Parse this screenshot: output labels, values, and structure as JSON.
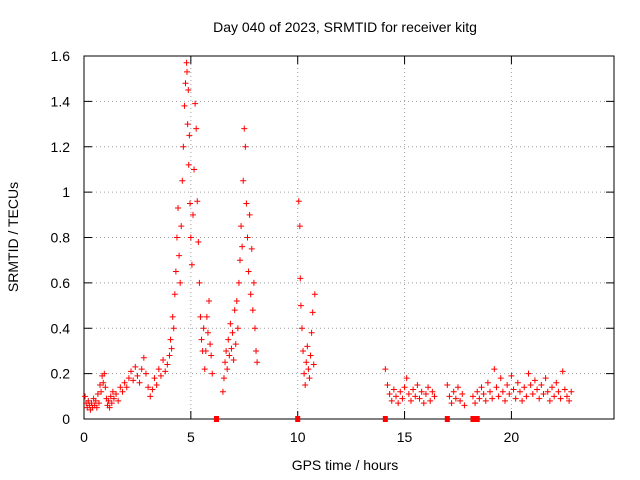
{
  "chart_data": {
    "type": "scatter",
    "title": "Day 040 of 2023, SRMTID for receiver kitg",
    "xlabel": "GPS time / hours",
    "ylabel": "SRMTID / TECUs",
    "xlim": [
      0,
      24.8
    ],
    "ylim": [
      0,
      1.6
    ],
    "xticks": [
      0,
      5,
      10,
      15,
      20
    ],
    "yticks": [
      0,
      0.2,
      0.4,
      0.6,
      0.8,
      1,
      1.2,
      1.4,
      1.6
    ],
    "xtick_labels": [
      "0",
      "5",
      "10",
      "15",
      "20"
    ],
    "ytick_labels": [
      "0",
      "0.2",
      "0.4",
      "0.6",
      "0.8",
      "1",
      "1.2",
      "1.4",
      "1.6"
    ],
    "grid": true,
    "marker": "+",
    "color": "#ff0000",
    "series": [
      {
        "name": "SRMTID",
        "points": [
          [
            0.05,
            0.1
          ],
          [
            0.1,
            0.07
          ],
          [
            0.15,
            0.05
          ],
          [
            0.2,
            0.08
          ],
          [
            0.25,
            0.06
          ],
          [
            0.3,
            0.04
          ],
          [
            0.35,
            0.07
          ],
          [
            0.4,
            0.05
          ],
          [
            0.45,
            0.09
          ],
          [
            0.5,
            0.06
          ],
          [
            0.55,
            0.08
          ],
          [
            0.6,
            0.05
          ],
          [
            0.65,
            0.11
          ],
          [
            0.7,
            0.07
          ],
          [
            0.75,
            0.15
          ],
          [
            0.8,
            0.12
          ],
          [
            0.85,
            0.19
          ],
          [
            0.9,
            0.16
          ],
          [
            0.95,
            0.2
          ],
          [
            1.0,
            0.14
          ],
          [
            1.05,
            0.09
          ],
          [
            1.1,
            0.06
          ],
          [
            1.15,
            0.08
          ],
          [
            1.2,
            0.05
          ],
          [
            1.25,
            0.1
          ],
          [
            1.3,
            0.07
          ],
          [
            1.35,
            0.12
          ],
          [
            1.4,
            0.09
          ],
          [
            1.5,
            0.11
          ],
          [
            1.6,
            0.08
          ],
          [
            1.7,
            0.14
          ],
          [
            1.8,
            0.12
          ],
          [
            1.9,
            0.16
          ],
          [
            2.0,
            0.14
          ],
          [
            2.1,
            0.18
          ],
          [
            2.2,
            0.21
          ],
          [
            2.3,
            0.17
          ],
          [
            2.4,
            0.23
          ],
          [
            2.5,
            0.19
          ],
          [
            2.6,
            0.16
          ],
          [
            2.7,
            0.22
          ],
          [
            2.8,
            0.27
          ],
          [
            2.9,
            0.2
          ],
          [
            3.0,
            0.14
          ],
          [
            3.1,
            0.1
          ],
          [
            3.2,
            0.13
          ],
          [
            3.3,
            0.18
          ],
          [
            3.4,
            0.15
          ],
          [
            3.5,
            0.22
          ],
          [
            3.6,
            0.19
          ],
          [
            3.7,
            0.26
          ],
          [
            3.8,
            0.21
          ],
          [
            3.9,
            0.24
          ],
          [
            4.0,
            0.28
          ],
          [
            4.05,
            0.35
          ],
          [
            4.1,
            0.31
          ],
          [
            4.15,
            0.45
          ],
          [
            4.2,
            0.4
          ],
          [
            4.25,
            0.55
          ],
          [
            4.3,
            0.65
          ],
          [
            4.35,
            0.8
          ],
          [
            4.4,
            0.93
          ],
          [
            4.45,
            0.72
          ],
          [
            4.5,
            0.6
          ],
          [
            4.55,
            0.85
          ],
          [
            4.6,
            1.05
          ],
          [
            4.65,
            1.2
          ],
          [
            4.7,
            1.38
          ],
          [
            4.75,
            1.48
          ],
          [
            4.8,
            1.57
          ],
          [
            4.82,
            1.53
          ],
          [
            4.85,
            1.3
          ],
          [
            4.88,
            1.45
          ],
          [
            4.9,
            1.12
          ],
          [
            4.93,
            1.25
          ],
          [
            4.96,
            0.95
          ],
          [
            5.0,
            0.8
          ],
          [
            5.05,
            0.68
          ],
          [
            5.1,
            0.9
          ],
          [
            5.15,
            1.1
          ],
          [
            5.2,
            1.39
          ],
          [
            5.25,
            1.28
          ],
          [
            5.3,
            0.96
          ],
          [
            5.35,
            0.78
          ],
          [
            5.4,
            0.6
          ],
          [
            5.45,
            0.45
          ],
          [
            5.5,
            0.35
          ],
          [
            5.55,
            0.3
          ],
          [
            5.6,
            0.4
          ],
          [
            5.65,
            0.22
          ],
          [
            5.7,
            0.3
          ],
          [
            5.75,
            0.45
          ],
          [
            5.8,
            0.38
          ],
          [
            5.85,
            0.52
          ],
          [
            5.9,
            0.33
          ],
          [
            5.95,
            0.28
          ],
          [
            6.0,
            0.2
          ],
          [
            6.5,
            0.12
          ],
          [
            6.55,
            0.18
          ],
          [
            6.6,
            0.25
          ],
          [
            6.65,
            0.3
          ],
          [
            6.7,
            0.22
          ],
          [
            6.75,
            0.35
          ],
          [
            6.8,
            0.28
          ],
          [
            6.85,
            0.42
          ],
          [
            6.9,
            0.31
          ],
          [
            6.95,
            0.38
          ],
          [
            7.0,
            0.26
          ],
          [
            7.05,
            0.48
          ],
          [
            7.1,
            0.33
          ],
          [
            7.15,
            0.52
          ],
          [
            7.2,
            0.4
          ],
          [
            7.25,
            0.6
          ],
          [
            7.3,
            0.7
          ],
          [
            7.35,
            0.85
          ],
          [
            7.4,
            0.76
          ],
          [
            7.45,
            1.05
          ],
          [
            7.5,
            1.28
          ],
          [
            7.55,
            1.2
          ],
          [
            7.6,
            0.95
          ],
          [
            7.65,
            0.8
          ],
          [
            7.7,
            0.65
          ],
          [
            7.75,
            0.9
          ],
          [
            7.8,
            0.55
          ],
          [
            7.85,
            0.75
          ],
          [
            7.9,
            0.48
          ],
          [
            7.95,
            0.6
          ],
          [
            8.0,
            0.4
          ],
          [
            8.05,
            0.3
          ],
          [
            8.1,
            0.25
          ],
          [
            10.05,
            0.96
          ],
          [
            10.1,
            0.85
          ],
          [
            10.12,
            0.62
          ],
          [
            10.15,
            0.5
          ],
          [
            10.2,
            0.4
          ],
          [
            10.25,
            0.3
          ],
          [
            10.3,
            0.2
          ],
          [
            10.35,
            0.15
          ],
          [
            10.4,
            0.25
          ],
          [
            10.45,
            0.32
          ],
          [
            10.5,
            0.22
          ],
          [
            10.55,
            0.18
          ],
          [
            10.6,
            0.28
          ],
          [
            10.65,
            0.38
          ],
          [
            10.7,
            0.47
          ],
          [
            10.75,
            0.24
          ],
          [
            10.8,
            0.55
          ],
          [
            14.1,
            0.22
          ],
          [
            14.2,
            0.15
          ],
          [
            14.3,
            0.11
          ],
          [
            14.4,
            0.08
          ],
          [
            14.5,
            0.13
          ],
          [
            14.6,
            0.1
          ],
          [
            14.7,
            0.07
          ],
          [
            14.8,
            0.12
          ],
          [
            14.9,
            0.09
          ],
          [
            15.0,
            0.14
          ],
          [
            15.1,
            0.18
          ],
          [
            15.2,
            0.11
          ],
          [
            15.3,
            0.08
          ],
          [
            15.4,
            0.13
          ],
          [
            15.5,
            0.1
          ],
          [
            15.6,
            0.15
          ],
          [
            15.7,
            0.09
          ],
          [
            15.8,
            0.12
          ],
          [
            15.9,
            0.07
          ],
          [
            16.0,
            0.11
          ],
          [
            16.1,
            0.14
          ],
          [
            16.2,
            0.08
          ],
          [
            16.3,
            0.12
          ],
          [
            16.4,
            0.1
          ],
          [
            17.0,
            0.15
          ],
          [
            17.1,
            0.1
          ],
          [
            17.2,
            0.07
          ],
          [
            17.3,
            0.12
          ],
          [
            17.4,
            0.09
          ],
          [
            17.5,
            0.14
          ],
          [
            17.6,
            0.08
          ],
          [
            17.7,
            0.11
          ],
          [
            17.8,
            0.06
          ],
          [
            18.2,
            0.1
          ],
          [
            18.3,
            0.07
          ],
          [
            18.4,
            0.12
          ],
          [
            18.5,
            0.09
          ],
          [
            18.6,
            0.14
          ],
          [
            18.7,
            0.11
          ],
          [
            18.8,
            0.08
          ],
          [
            18.9,
            0.16
          ],
          [
            19.0,
            0.12
          ],
          [
            19.1,
            0.09
          ],
          [
            19.2,
            0.22
          ],
          [
            19.3,
            0.14
          ],
          [
            19.4,
            0.1
          ],
          [
            19.5,
            0.18
          ],
          [
            19.6,
            0.12
          ],
          [
            19.7,
            0.08
          ],
          [
            19.8,
            0.15
          ],
          [
            19.9,
            0.11
          ],
          [
            20.0,
            0.19
          ],
          [
            20.1,
            0.13
          ],
          [
            20.2,
            0.09
          ],
          [
            20.3,
            0.16
          ],
          [
            20.4,
            0.12
          ],
          [
            20.5,
            0.08
          ],
          [
            20.6,
            0.14
          ],
          [
            20.7,
            0.1
          ],
          [
            20.8,
            0.2
          ],
          [
            20.9,
            0.15
          ],
          [
            21.0,
            0.11
          ],
          [
            21.1,
            0.17
          ],
          [
            21.2,
            0.13
          ],
          [
            21.3,
            0.09
          ],
          [
            21.4,
            0.15
          ],
          [
            21.5,
            0.11
          ],
          [
            21.6,
            0.18
          ],
          [
            21.7,
            0.12
          ],
          [
            21.8,
            0.08
          ],
          [
            21.9,
            0.14
          ],
          [
            22.0,
            0.1
          ],
          [
            22.1,
            0.16
          ],
          [
            22.2,
            0.12
          ],
          [
            22.3,
            0.09
          ],
          [
            22.4,
            0.21
          ],
          [
            22.5,
            0.13
          ],
          [
            22.6,
            0.1
          ],
          [
            22.7,
            0.08
          ],
          [
            22.8,
            0.12
          ]
        ]
      }
    ],
    "zero_markers_x": [
      6.2,
      10.0,
      14.1,
      17.0,
      18.2,
      18.4
    ]
  }
}
